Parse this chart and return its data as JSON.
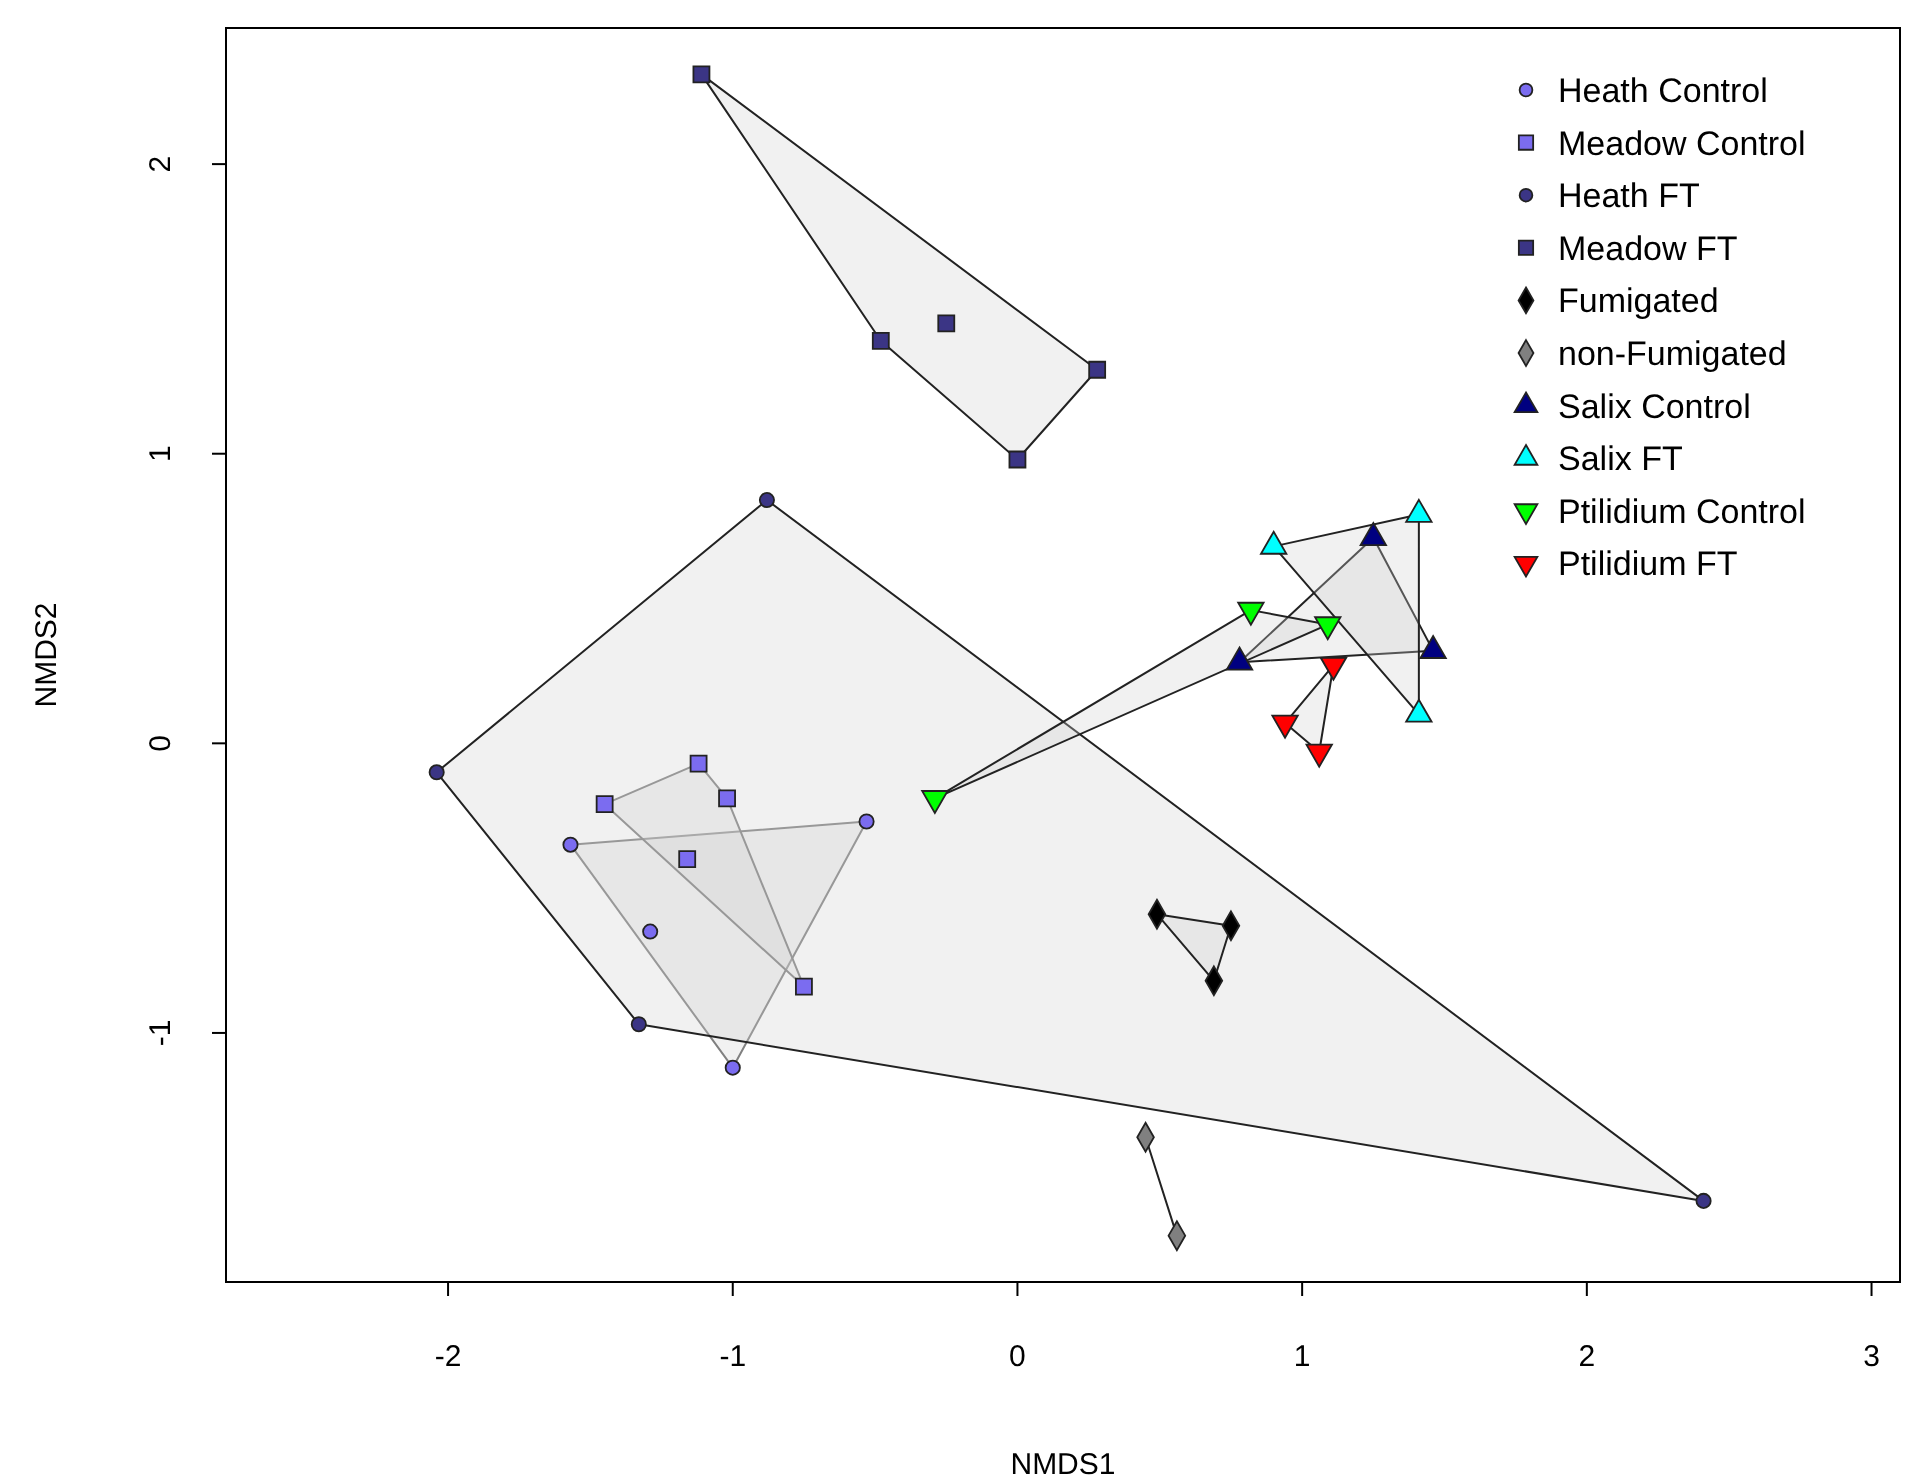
{
  "chart_data": {
    "type": "scatter",
    "xlabel": "NMDS1",
    "ylabel": "NMDS2",
    "xlim": [
      -2.78,
      3.1
    ],
    "ylim": [
      -1.86,
      2.47
    ],
    "xticks": [
      -2,
      -1,
      0,
      1,
      2,
      3
    ],
    "yticks": [
      -1,
      0,
      1,
      2
    ],
    "grid": false,
    "legend": "top right",
    "series": [
      {
        "name": "Heath Control",
        "color": "#7b6cf0",
        "marker": "circle",
        "x": [
          -1.57,
          -1.29,
          -0.53,
          -1.0
        ],
        "values": [
          -0.35,
          -0.65,
          -0.27,
          -1.12
        ]
      },
      {
        "name": "Meadow Control",
        "color": "#7b6cf0",
        "marker": "square",
        "x": [
          -1.12,
          -1.45,
          -1.02,
          -1.16,
          -0.75
        ],
        "values": [
          -0.07,
          -0.21,
          -0.19,
          -0.4,
          -0.84
        ]
      },
      {
        "name": "Heath FT",
        "color": "#3b3585",
        "marker": "circle",
        "x": [
          -0.88,
          -2.04,
          -1.33,
          2.41
        ],
        "values": [
          0.84,
          -0.1,
          -0.97,
          -1.58
        ]
      },
      {
        "name": "Meadow FT",
        "color": "#3b3585",
        "marker": "square",
        "x": [
          -1.11,
          -0.48,
          -0.25,
          0.0,
          0.28
        ],
        "values": [
          2.31,
          1.39,
          1.45,
          0.98,
          1.29
        ]
      },
      {
        "name": "Fumigated",
        "color": "#000000",
        "marker": "diamond",
        "x": [
          0.49,
          0.75,
          0.69
        ],
        "values": [
          -0.59,
          -0.63,
          -0.82
        ]
      },
      {
        "name": "non-Fumigated",
        "color": "#808080",
        "marker": "diamond",
        "x": [
          0.45,
          0.56
        ],
        "values": [
          -1.36,
          -1.7
        ]
      },
      {
        "name": "Salix Control",
        "color": "#000080",
        "marker": "triangle",
        "x": [
          0.78,
          1.25,
          1.46
        ],
        "values": [
          0.28,
          0.71,
          0.32
        ]
      },
      {
        "name": "Salix FT",
        "color": "#00ffff",
        "marker": "triangle",
        "x": [
          0.9,
          1.41,
          1.41
        ],
        "values": [
          0.68,
          0.79,
          0.1
        ]
      },
      {
        "name": "Ptilidium Control",
        "color": "#00ff00",
        "marker": "triangle-down",
        "x": [
          -0.29,
          0.82,
          1.09
        ],
        "values": [
          -0.19,
          0.46,
          0.41
        ]
      },
      {
        "name": "Ptilidium FT",
        "color": "#ff0000",
        "marker": "triangle-down",
        "x": [
          1.11,
          0.94,
          1.06
        ],
        "values": [
          0.27,
          0.07,
          -0.03
        ]
      }
    ]
  }
}
